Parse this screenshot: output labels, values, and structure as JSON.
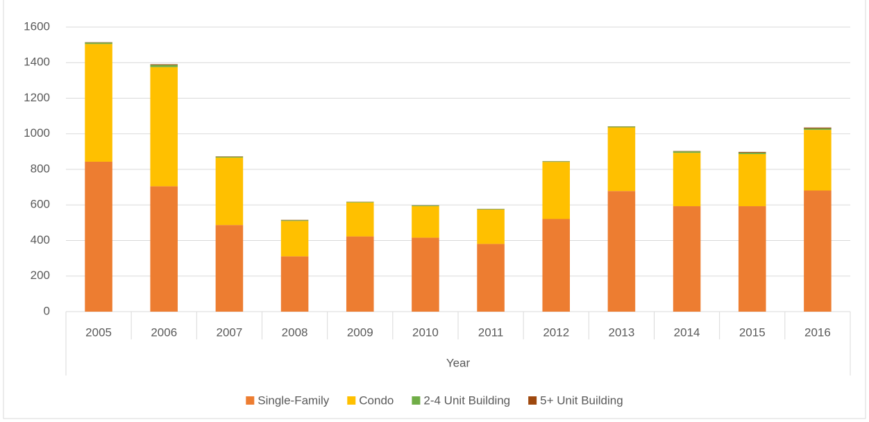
{
  "chart_data": {
    "type": "stacked_bar",
    "x_label": "Year",
    "categories": [
      "2005",
      "2006",
      "2007",
      "2008",
      "2009",
      "2010",
      "2011",
      "2012",
      "2013",
      "2014",
      "2015",
      "2016"
    ],
    "series": [
      {
        "name": "Single-Family",
        "color": "#ED7D31",
        "values": [
          843,
          705,
          487,
          311,
          423,
          416,
          381,
          521,
          678,
          593,
          593,
          681
        ]
      },
      {
        "name": "Condo",
        "color": "#FFC000",
        "values": [
          662,
          670,
          379,
          199,
          191,
          177,
          193,
          321,
          358,
          300,
          293,
          341
        ]
      },
      {
        "name": "2-4 Unit Building",
        "color": "#70AD47",
        "values": [
          8,
          12,
          5,
          4,
          3,
          4,
          3,
          3,
          5,
          8,
          8,
          8
        ]
      },
      {
        "name": "5+ Unit Building",
        "color": "#9E480E",
        "values": [
          2,
          4,
          2,
          2,
          1,
          1,
          1,
          1,
          1,
          2,
          4,
          5
        ]
      }
    ],
    "ylim": [
      0,
      1600
    ],
    "yticks": [
      0,
      200,
      400,
      600,
      800,
      1000,
      1200,
      1400,
      1600
    ],
    "grid": true,
    "legend": "bottom"
  }
}
